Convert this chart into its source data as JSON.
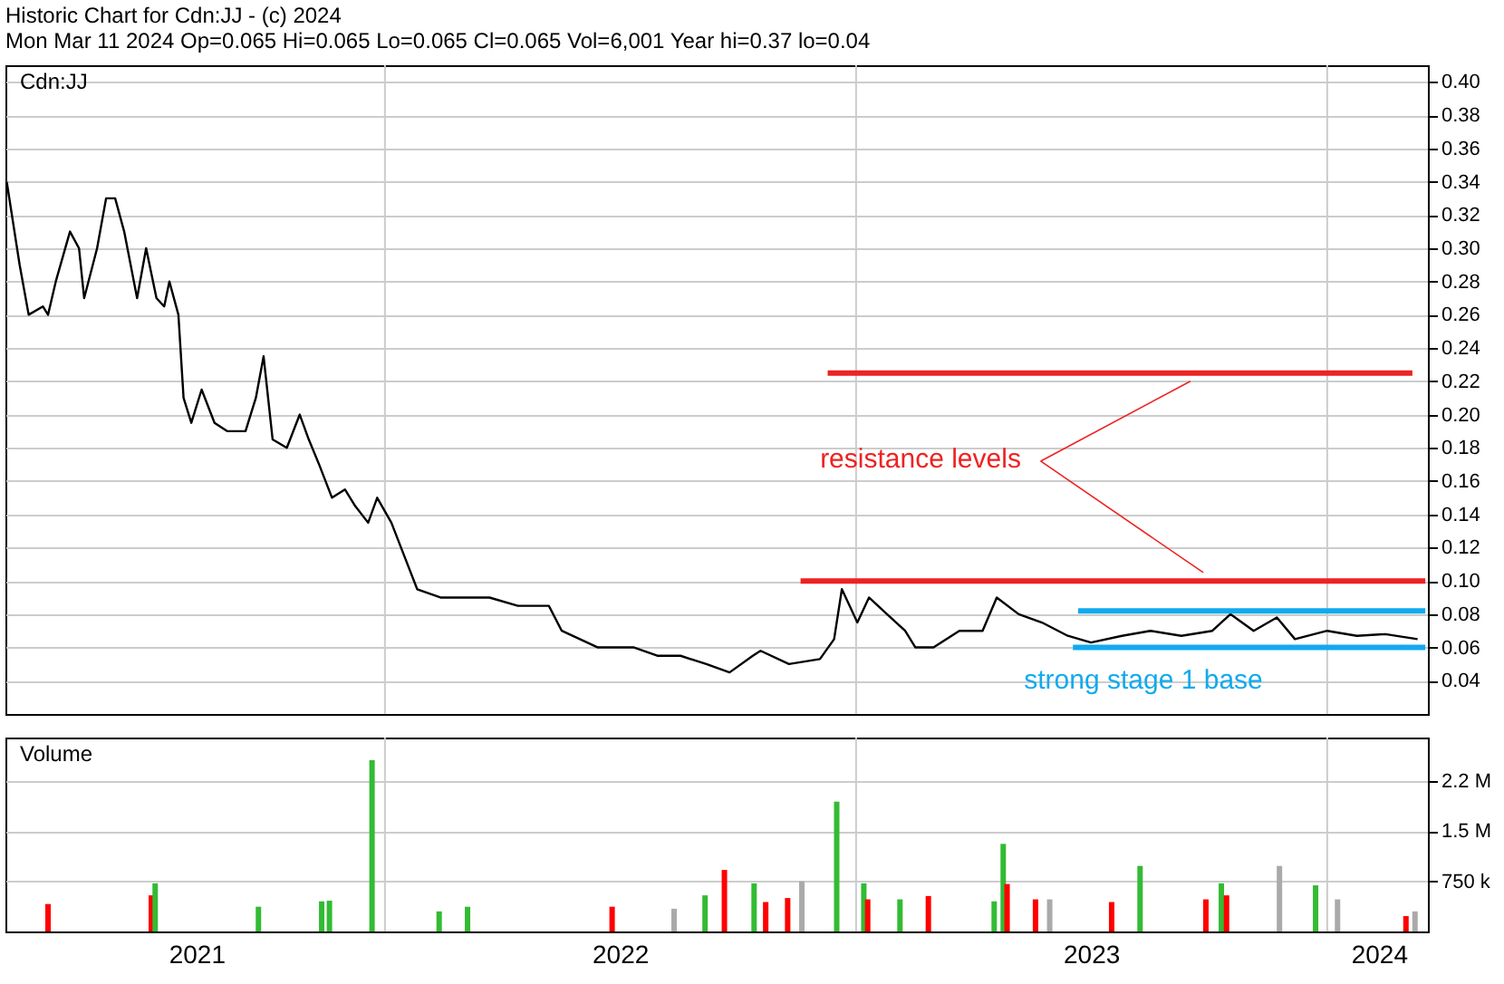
{
  "chart_data": [
    {
      "type": "line",
      "title": "Historic Chart for Cdn:JJ - (c) 2024",
      "subtitle": "Mon Mar 11 2024   Op=0.065   Hi=0.065   Lo=0.065   Cl=0.065   Vol=6,001   Year hi=0.37   lo=0.04",
      "xlim": [
        "2021-03-13",
        "2024-03-19"
      ],
      "ylim": [
        0.02,
        0.41
      ],
      "yticks": [
        {
          "value": 0.04,
          "label": "0.04"
        },
        {
          "value": 0.06,
          "label": "0.06"
        },
        {
          "value": 0.08,
          "label": "0.08"
        },
        {
          "value": 0.1,
          "label": "0.10"
        },
        {
          "value": 0.12,
          "label": "0.12"
        },
        {
          "value": 0.14,
          "label": "0.14"
        },
        {
          "value": 0.16,
          "label": "0.16"
        },
        {
          "value": 0.18,
          "label": "0.18"
        },
        {
          "value": 0.2,
          "label": "0.20"
        },
        {
          "value": 0.22,
          "label": "0.22"
        },
        {
          "value": 0.24,
          "label": "0.24"
        },
        {
          "value": 0.26,
          "label": "0.26"
        },
        {
          "value": 0.28,
          "label": "0.28"
        },
        {
          "value": 0.3,
          "label": "0.30"
        },
        {
          "value": 0.32,
          "label": "0.32"
        },
        {
          "value": 0.34,
          "label": "0.34"
        },
        {
          "value": 0.36,
          "label": "0.36"
        },
        {
          "value": 0.38,
          "label": "0.38"
        },
        {
          "value": 0.4,
          "label": "0.40"
        }
      ],
      "tick_labels": "y",
      "grid": "y",
      "series": [
        {
          "type": "line",
          "color": "#000000",
          "x": [
            "2021-03-14",
            "2021-03-24",
            "2021-03-31",
            "2021-04-11",
            "2021-04-15",
            "2021-04-21",
            "2021-05-02",
            "2021-05-09",
            "2021-05-13",
            "2021-05-23",
            "2021-05-30",
            "2021-06-06",
            "2021-06-13",
            "2021-06-23",
            "2021-06-30",
            "2021-07-08",
            "2021-07-14",
            "2021-07-18",
            "2021-07-25",
            "2021-07-29",
            "2021-08-04",
            "2021-08-12",
            "2021-08-22",
            "2021-09-01",
            "2021-09-15",
            "2021-09-23",
            "2021-09-29",
            "2021-10-06",
            "2021-10-17",
            "2021-10-27",
            "2021-11-03",
            "2021-11-11",
            "2021-11-21",
            "2021-12-01",
            "2021-12-09",
            "2021-12-19",
            "2021-12-26",
            "2022-01-06",
            "2022-01-16",
            "2022-01-26",
            "2022-02-13",
            "2022-03-03",
            "2022-03-23",
            "2022-04-14",
            "2022-05-08",
            "2022-05-18",
            "2022-06-15",
            "2022-07-13",
            "2022-07-31",
            "2022-08-18",
            "2022-09-07",
            "2022-09-25",
            "2022-10-13",
            "2022-10-19",
            "2022-11-10",
            "2022-12-04",
            "2022-12-15",
            "2022-12-21",
            "2023-01-02",
            "2023-01-11",
            "2023-01-25",
            "2023-02-08",
            "2023-02-16",
            "2023-03-02",
            "2023-03-22",
            "2023-04-09",
            "2023-04-20",
            "2023-05-07",
            "2023-05-25",
            "2023-06-14",
            "2023-07-02",
            "2023-07-26",
            "2023-08-17",
            "2023-09-10",
            "2023-10-04",
            "2023-10-18",
            "2023-11-05",
            "2023-11-23",
            "2023-12-07",
            "2024-01-01",
            "2024-01-24",
            "2024-02-15",
            "2024-03-11"
          ],
          "values": [
            0.34,
            0.29,
            0.26,
            0.265,
            0.26,
            0.28,
            0.31,
            0.3,
            0.27,
            0.3,
            0.33,
            0.33,
            0.31,
            0.27,
            0.3,
            0.27,
            0.265,
            0.28,
            0.26,
            0.21,
            0.195,
            0.215,
            0.195,
            0.19,
            0.19,
            0.21,
            0.235,
            0.185,
            0.18,
            0.2,
            0.185,
            0.17,
            0.15,
            0.155,
            0.145,
            0.135,
            0.15,
            0.135,
            0.115,
            0.095,
            0.09,
            0.09,
            0.09,
            0.085,
            0.085,
            0.07,
            0.06,
            0.06,
            0.055,
            0.055,
            0.05,
            0.045,
            0.055,
            0.058,
            0.05,
            0.053,
            0.065,
            0.095,
            0.075,
            0.09,
            0.08,
            0.07,
            0.06,
            0.06,
            0.07,
            0.07,
            0.09,
            0.08,
            0.075,
            0.067,
            0.063,
            0.067,
            0.07,
            0.067,
            0.07,
            0.08,
            0.07,
            0.078,
            0.065,
            0.07,
            0.067,
            0.068,
            0.065
          ]
        },
        {
          "type": "line",
          "color": "#ee2222",
          "x": [
            "2022-12-10",
            "2024-03-07"
          ],
          "values": [
            0.225,
            0.225
          ]
        },
        {
          "type": "line",
          "color": "#ee2222",
          "x": [
            "2022-11-19",
            "2024-03-17"
          ],
          "values": [
            0.1,
            0.1
          ]
        },
        {
          "type": "line",
          "color": "#11aaee",
          "x": [
            "2023-06-22",
            "2024-03-17"
          ],
          "values": [
            0.082,
            0.082
          ]
        },
        {
          "type": "line",
          "color": "#11aaee",
          "x": [
            "2023-06-18",
            "2024-03-17"
          ],
          "values": [
            0.06,
            0.06
          ]
        },
        {
          "type": "line",
          "color": "#ee2222",
          "x": [
            "2023-05-24",
            "2023-09-17"
          ],
          "values": [
            0.172,
            0.22
          ]
        },
        {
          "type": "line",
          "color": "#ee2222",
          "x": [
            "2023-05-24",
            "2023-09-27"
          ],
          "values": [
            0.172,
            0.105
          ]
        }
      ],
      "ref_lines": [
        {
          "axis": "x",
          "value": "2022-01-01",
          "color": "#cccccc"
        },
        {
          "axis": "x",
          "value": "2023-01-01",
          "color": "#cccccc"
        },
        {
          "axis": "x",
          "value": "2024-01-01",
          "color": "#cccccc"
        }
      ],
      "annotations": [
        "Cdn:JJ",
        "resistance levels",
        "strong stage 1 base"
      ]
    },
    {
      "type": "bar",
      "xlim": [
        "2021-03-13",
        "2024-03-19"
      ],
      "ylim": [
        0,
        2900000
      ],
      "yticks": [
        {
          "value": 750000,
          "label": "750 k"
        },
        {
          "value": 1500000,
          "label": "1.5 M"
        },
        {
          "value": 2250000,
          "label": "2.2 M"
        }
      ],
      "xticks": [
        {
          "value": "2021-08-08",
          "label": "2021"
        },
        {
          "value": "2022-07-02",
          "label": "2022"
        },
        {
          "value": "2023-07-02",
          "label": "2023"
        },
        {
          "value": "2024-02-10",
          "label": "2024"
        }
      ],
      "grid": "y",
      "x": [
        "2021-04-15",
        "2021-07-04",
        "2021-07-07",
        "2021-09-25",
        "2021-11-13",
        "2021-11-19",
        "2021-12-22",
        "2022-02-12",
        "2022-03-06",
        "2022-06-26",
        "2022-08-13",
        "2022-09-06",
        "2022-09-21",
        "2022-10-14",
        "2022-10-23",
        "2022-11-09",
        "2022-11-20",
        "2022-12-17",
        "2023-01-07",
        "2023-01-10",
        "2023-02-04",
        "2023-02-26",
        "2023-04-18",
        "2023-04-25",
        "2023-04-28",
        "2023-05-20",
        "2023-05-31",
        "2023-07-18",
        "2023-08-09",
        "2023-09-29",
        "2023-10-11",
        "2023-10-15",
        "2023-11-25",
        "2023-12-23",
        "2024-01-09",
        "2024-03-02",
        "2024-03-09"
      ],
      "values": [
        410000,
        540000,
        720000,
        370000,
        450000,
        460000,
        2560000,
        300000,
        370000,
        370000,
        340000,
        540000,
        920000,
        720000,
        440000,
        500000,
        750000,
        1940000,
        720000,
        480000,
        480000,
        530000,
        450000,
        1310000,
        710000,
        480000,
        480000,
        440000,
        980000,
        480000,
        720000,
        540000,
        980000,
        690000,
        480000,
        230000,
        300000
      ],
      "colors": [
        "#ff0000",
        "#ff0000",
        "#33bb33",
        "#33bb33",
        "#33bb33",
        "#33bb33",
        "#33bb33",
        "#33bb33",
        "#33bb33",
        "#ff0000",
        "#aaaaaa",
        "#33bb33",
        "#ff0000",
        "#33bb33",
        "#ff0000",
        "#ff0000",
        "#aaaaaa",
        "#33bb33",
        "#33bb33",
        "#ff0000",
        "#33bb33",
        "#ff0000",
        "#33bb33",
        "#33bb33",
        "#ff0000",
        "#ff0000",
        "#aaaaaa",
        "#ff0000",
        "#33bb33",
        "#ff0000",
        "#33bb33",
        "#ff0000",
        "#aaaaaa",
        "#33bb33",
        "#aaaaaa",
        "#ff0000",
        "#aaaaaa"
      ],
      "ref_lines": [
        {
          "axis": "x",
          "value": "2022-01-01",
          "color": "#cccccc"
        },
        {
          "axis": "x",
          "value": "2023-01-01",
          "color": "#cccccc"
        },
        {
          "axis": "x",
          "value": "2024-01-01",
          "color": "#cccccc"
        }
      ],
      "annotations": [
        "Volume"
      ]
    }
  ]
}
